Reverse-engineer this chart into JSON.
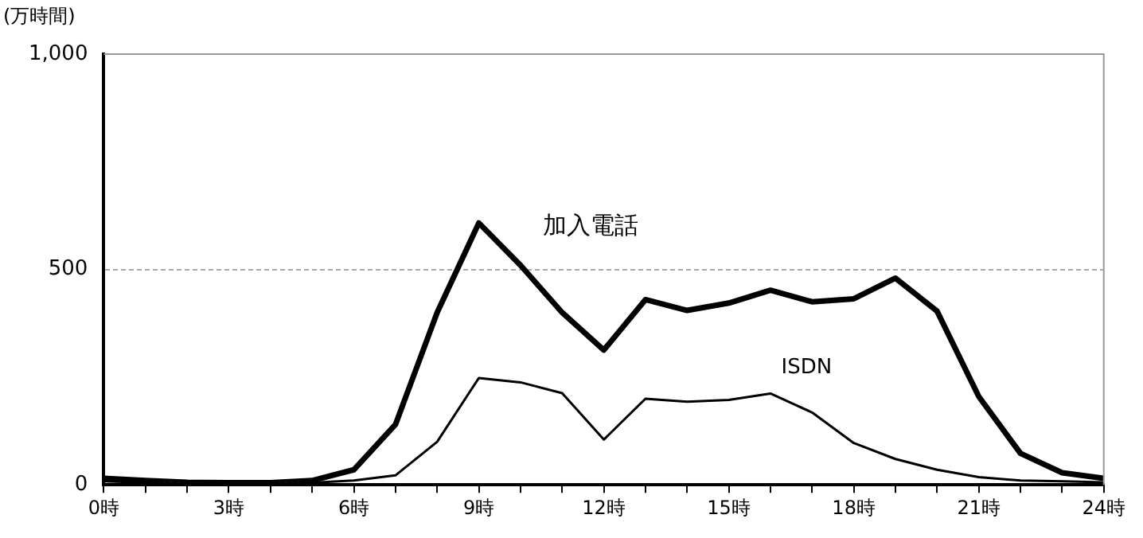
{
  "chart_data": {
    "type": "line",
    "ylabel": "(万時間)",
    "x": [
      0,
      1,
      2,
      3,
      4,
      5,
      6,
      7,
      8,
      9,
      10,
      11,
      12,
      13,
      14,
      15,
      16,
      17,
      18,
      19,
      20,
      21,
      22,
      23,
      24
    ],
    "series": [
      {
        "name": "加入電話",
        "color": "#000000",
        "values": [
          15,
          10,
          6,
          5,
          5,
          10,
          35,
          140,
          400,
          608,
          510,
          400,
          313,
          430,
          405,
          422,
          452,
          425,
          432,
          480,
          403,
          205,
          73,
          28,
          15
        ]
      },
      {
        "name": "ISDN",
        "color": "#000000",
        "values": [
          8,
          5,
          3,
          2,
          3,
          5,
          10,
          22,
          100,
          248,
          238,
          213,
          105,
          200,
          193,
          197,
          212,
          168,
          97,
          60,
          35,
          18,
          10,
          8,
          6
        ]
      }
    ],
    "xlim": [
      0,
      24
    ],
    "xticks": [
      {
        "value": 0,
        "label": "0時"
      },
      {
        "value": 1,
        "label": null
      },
      {
        "value": 2,
        "label": null
      },
      {
        "value": 3,
        "label": "3時"
      },
      {
        "value": 4,
        "label": null
      },
      {
        "value": 5,
        "label": null
      },
      {
        "value": 6,
        "label": "6時"
      },
      {
        "value": 7,
        "label": null
      },
      {
        "value": 8,
        "label": null
      },
      {
        "value": 9,
        "label": "9時"
      },
      {
        "value": 10,
        "label": null
      },
      {
        "value": 11,
        "label": null
      },
      {
        "value": 12,
        "label": "12時"
      },
      {
        "value": 13,
        "label": null
      },
      {
        "value": 14,
        "label": null
      },
      {
        "value": 15,
        "label": "15時"
      },
      {
        "value": 16,
        "label": null
      },
      {
        "value": 17,
        "label": null
      },
      {
        "value": 18,
        "label": "18時"
      },
      {
        "value": 19,
        "label": null
      },
      {
        "value": 20,
        "label": null
      },
      {
        "value": 21,
        "label": "21時"
      },
      {
        "value": 22,
        "label": null
      },
      {
        "value": 23,
        "label": null
      },
      {
        "value": 24,
        "label": "24時"
      }
    ],
    "ylim": [
      0,
      1000
    ],
    "yticks": [
      0,
      500,
      {
        "value": 1000,
        "label": "1,000"
      }
    ],
    "grid": "y",
    "legend": false,
    "marker": "none",
    "line_style": "solid"
  }
}
